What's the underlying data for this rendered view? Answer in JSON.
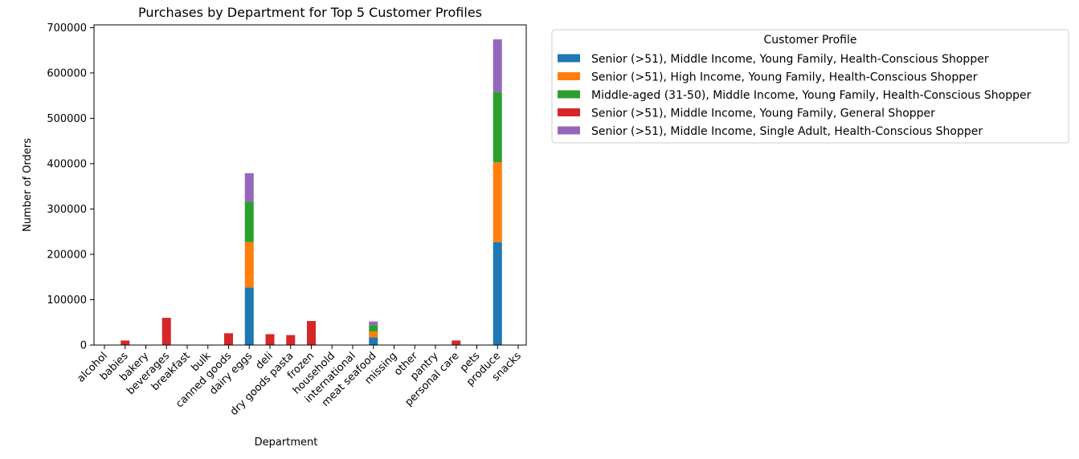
{
  "chart_data": {
    "type": "bar",
    "stacked": true,
    "title": "Purchases by Department for Top 5 Customer Profiles",
    "xlabel": "Department",
    "ylabel": "Number of Orders",
    "ylim": [
      0,
      706000
    ],
    "yticks": [
      0,
      100000,
      200000,
      300000,
      400000,
      500000,
      600000,
      700000
    ],
    "ytick_labels": [
      "0",
      "100000",
      "200000",
      "300000",
      "400000",
      "500000",
      "600000",
      "700000"
    ],
    "grid": false,
    "legend": {
      "title": "Customer Profile",
      "placement": "outside-right-top"
    },
    "categories": [
      "alcohol",
      "babies",
      "bakery",
      "beverages",
      "breakfast",
      "bulk",
      "canned goods",
      "dairy eggs",
      "deli",
      "dry goods pasta",
      "frozen",
      "household",
      "international",
      "meat seafood",
      "missing",
      "other",
      "pantry",
      "personal care",
      "pets",
      "produce",
      "snacks"
    ],
    "series": [
      {
        "name": "Senior (>51), Middle Income, Young Family, Health-Conscious Shopper",
        "color": "#1f77b4",
        "values": [
          0,
          0,
          0,
          0,
          0,
          0,
          0,
          127000,
          0,
          0,
          0,
          0,
          0,
          17000,
          0,
          0,
          0,
          0,
          0,
          227000,
          0
        ]
      },
      {
        "name": "Senior (>51), High Income, Young Family, Health-Conscious Shopper",
        "color": "#ff7f0e",
        "values": [
          0,
          0,
          0,
          0,
          0,
          0,
          0,
          100000,
          0,
          0,
          0,
          0,
          0,
          13000,
          0,
          0,
          0,
          0,
          0,
          176000,
          0
        ]
      },
      {
        "name": "Middle-aged (31-50), Middle Income, Young Family, Health-Conscious Shopper",
        "color": "#2ca02c",
        "values": [
          0,
          0,
          0,
          0,
          0,
          0,
          0,
          89000,
          0,
          0,
          0,
          0,
          0,
          14000,
          0,
          0,
          0,
          0,
          0,
          155000,
          0
        ]
      },
      {
        "name": "Senior (>51), Middle Income, Young Family, General Shopper",
        "color": "#d62728",
        "values": [
          0,
          10000,
          0,
          60000,
          0,
          0,
          26000,
          0,
          24000,
          22000,
          53000,
          0,
          0,
          0,
          0,
          0,
          0,
          10000,
          0,
          0,
          0
        ]
      },
      {
        "name": "Senior (>51), Middle Income, Single Adult, Health-Conscious Shopper",
        "color": "#9467bd",
        "values": [
          0,
          0,
          0,
          0,
          0,
          0,
          0,
          63000,
          0,
          0,
          0,
          0,
          0,
          8000,
          0,
          0,
          0,
          0,
          0,
          116000,
          0
        ]
      }
    ]
  }
}
